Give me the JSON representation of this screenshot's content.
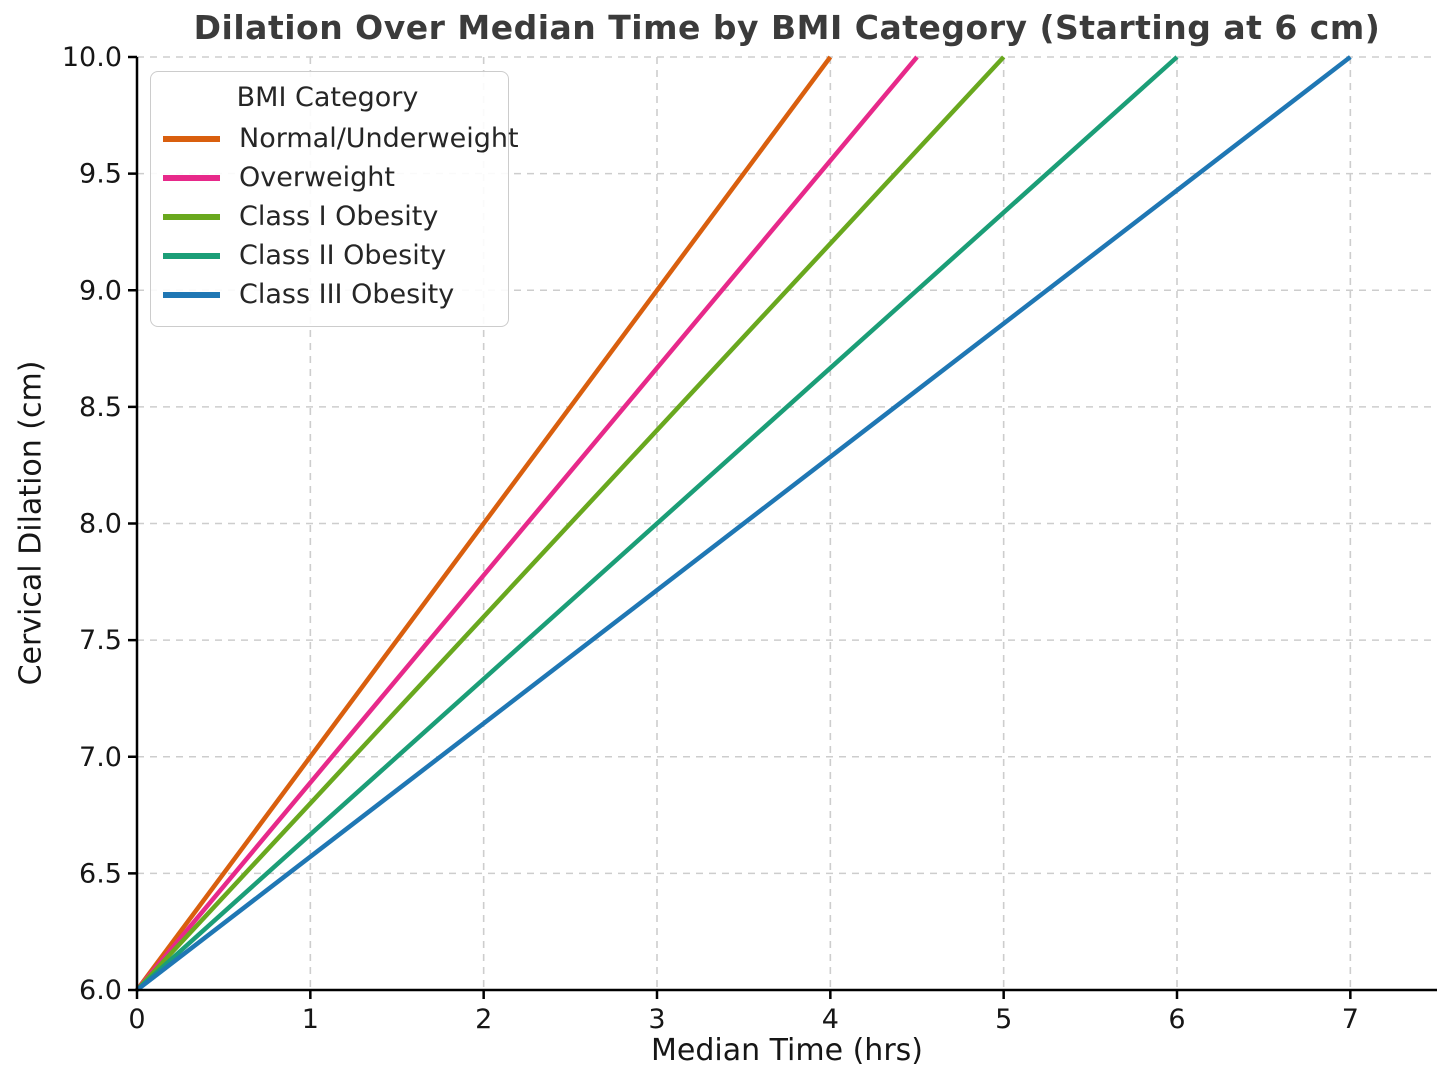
{
  "page": {
    "background": "#ffffff"
  },
  "chart_data": {
    "type": "line",
    "title": "Dilation Over Median Time by BMI Category (Starting at 6 cm)",
    "xlabel": "Median Time (hrs)",
    "ylabel": "Cervical Dilation (cm)",
    "xlim": [
      0,
      7.5
    ],
    "ylim": [
      6.0,
      10.0
    ],
    "xticks": [
      0,
      1,
      2,
      3,
      4,
      5,
      6,
      7
    ],
    "xtick_labels": [
      "0",
      "1",
      "2",
      "3",
      "4",
      "5",
      "6",
      "7"
    ],
    "yticks": [
      6.0,
      6.5,
      7.0,
      7.5,
      8.0,
      8.5,
      9.0,
      9.5,
      10.0
    ],
    "ytick_labels": [
      "6.0",
      "6.5",
      "7.0",
      "7.5",
      "8.0",
      "8.5",
      "9.0",
      "9.5",
      "10.0"
    ],
    "grid": {
      "visible": true,
      "line_style": "dashed",
      "color": "#cdcdcd"
    },
    "legend": {
      "title": "BMI Category",
      "position": "upper-left"
    },
    "title_color": "#3b3b3b",
    "start_point": {
      "x": 0,
      "y": 6.0
    },
    "series": [
      {
        "name": "Normal/Underweight",
        "color": "#d95f0e",
        "x": [
          0,
          4.0
        ],
        "y": [
          6.0,
          10.0
        ]
      },
      {
        "name": "Overweight",
        "color": "#e7298a",
        "x": [
          0,
          4.5
        ],
        "y": [
          6.0,
          10.0
        ]
      },
      {
        "name": "Class I Obesity",
        "color": "#69a81e",
        "x": [
          0,
          5.0
        ],
        "y": [
          6.0,
          10.0
        ]
      },
      {
        "name": "Class II Obesity",
        "color": "#1b9e77",
        "x": [
          0,
          6.0
        ],
        "y": [
          6.0,
          10.0
        ]
      },
      {
        "name": "Class III Obesity",
        "color": "#1f77b4",
        "x": [
          0,
          7.0
        ],
        "y": [
          6.0,
          10.0
        ]
      }
    ]
  }
}
